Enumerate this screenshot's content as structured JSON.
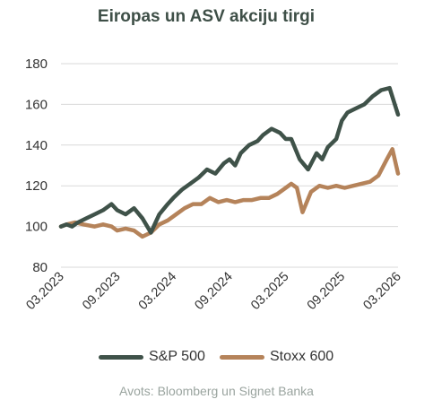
{
  "title": "Eiropas un ASV akciju tirgi",
  "source": "Avots: Bloomberg un Signet Banka",
  "colors": {
    "sp500": "#3f5249",
    "stoxx600": "#b5835a",
    "grid": "#d9d9d9",
    "title": "#3e4f47"
  },
  "chart_data": {
    "type": "line",
    "title": "Eiropas un ASV akciju tirgi",
    "xlabel": "",
    "ylabel": "",
    "ylim": [
      80,
      180
    ],
    "yticks": [
      "80",
      "100",
      "120",
      "140",
      "160",
      "180"
    ],
    "xticks": [
      "03.2023",
      "09.2023",
      "03.2024",
      "09.2024",
      "03.2025",
      "09.2025",
      "03.2026"
    ],
    "grid": "horizontal",
    "legend": "bottom",
    "series": [
      {
        "name": "S&P 500",
        "key": "sp500",
        "x": [
          0,
          0.1,
          0.2,
          0.3,
          0.45,
          0.6,
          0.75,
          0.9,
          1.0,
          1.15,
          1.3,
          1.45,
          1.6,
          1.75,
          1.9,
          2.0,
          2.15,
          2.3,
          2.45,
          2.6,
          2.75,
          2.9,
          3.0,
          3.1,
          3.2,
          3.35,
          3.5,
          3.6,
          3.75,
          3.9,
          4.0,
          4.1,
          4.25,
          4.4,
          4.55,
          4.65,
          4.75,
          4.9,
          5.0,
          5.1,
          5.25,
          5.4,
          5.55,
          5.7,
          5.85,
          6.0
        ],
        "y": [
          100,
          101,
          100,
          102,
          104,
          106,
          108,
          111,
          108,
          106,
          109,
          104,
          97,
          106,
          111,
          114,
          118,
          121,
          124,
          128,
          126,
          131,
          133,
          130,
          136,
          140,
          142,
          145,
          148,
          146,
          143,
          143,
          133,
          128,
          136,
          133,
          139,
          143,
          152,
          156,
          158,
          160,
          164,
          167,
          168,
          155
        ]
      },
      {
        "name": "Stoxx 600",
        "key": "stoxx600",
        "x": [
          0,
          0.1,
          0.25,
          0.4,
          0.6,
          0.75,
          0.9,
          1.0,
          1.15,
          1.3,
          1.45,
          1.6,
          1.75,
          1.9,
          2.05,
          2.2,
          2.35,
          2.5,
          2.65,
          2.8,
          2.95,
          3.1,
          3.25,
          3.4,
          3.55,
          3.7,
          3.85,
          4.0,
          4.1,
          4.2,
          4.3,
          4.45,
          4.6,
          4.75,
          4.9,
          5.05,
          5.2,
          5.35,
          5.5,
          5.65,
          5.8,
          5.9,
          6.0
        ],
        "y": [
          100,
          101,
          102,
          101,
          100,
          101,
          100,
          98,
          99,
          98,
          95,
          97,
          101,
          103,
          106,
          109,
          111,
          111,
          114,
          112,
          113,
          112,
          113,
          113,
          114,
          114,
          116,
          119,
          121,
          119,
          107,
          117,
          120,
          119,
          120,
          119,
          120,
          121,
          122,
          125,
          133,
          138,
          126
        ]
      }
    ]
  }
}
